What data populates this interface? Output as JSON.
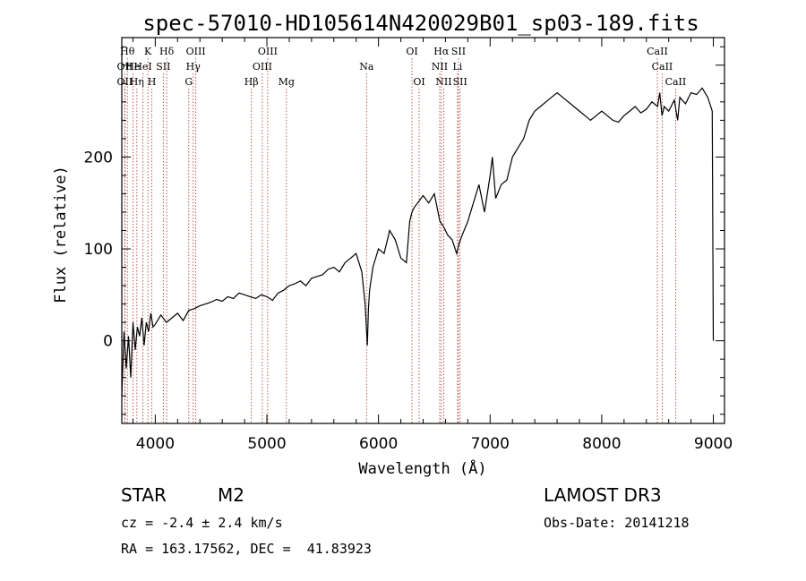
{
  "header": {
    "title": "spec-57010-HD105614N420029B01_sp03-189.fits"
  },
  "info": {
    "class_label": "STAR",
    "subclass_label": "M2",
    "cz": "cz = -2.4 ± 2.4 km/s",
    "radec": "RA = 163.17562, DEC =  41.83923",
    "survey": "LAMOST DR3",
    "obs_date": "Obs-Date: 20141218"
  },
  "colors": {
    "line_marker": "#b03030",
    "spectrum": "#000000"
  },
  "chart_data": {
    "type": "line",
    "title": "spec-57010-HD105614N420029B01_sp03-189.fits",
    "xlabel": "Wavelength (Å)",
    "ylabel": "Flux (relative)",
    "xlim": [
      3700,
      9100
    ],
    "ylim": [
      -90,
      330
    ],
    "xticks": [
      4000,
      5000,
      6000,
      7000,
      8000,
      9000
    ],
    "yticks": [
      0,
      100,
      200
    ],
    "spectrum": {
      "x": [
        3700,
        3720,
        3740,
        3760,
        3780,
        3800,
        3820,
        3840,
        3860,
        3880,
        3900,
        3920,
        3940,
        3960,
        3980,
        4000,
        4050,
        4100,
        4150,
        4200,
        4250,
        4300,
        4350,
        4400,
        4450,
        4500,
        4550,
        4600,
        4650,
        4700,
        4750,
        4800,
        4850,
        4900,
        4950,
        5000,
        5050,
        5100,
        5150,
        5200,
        5250,
        5300,
        5350,
        5400,
        5450,
        5500,
        5550,
        5600,
        5650,
        5700,
        5750,
        5800,
        5850,
        5880,
        5900,
        5910,
        5920,
        5950,
        6000,
        6050,
        6100,
        6150,
        6200,
        6250,
        6280,
        6300,
        6320,
        6350,
        6400,
        6450,
        6500,
        6550,
        6580,
        6620,
        6660,
        6700,
        6720,
        6750,
        6800,
        6850,
        6900,
        6950,
        7000,
        7020,
        7050,
        7100,
        7150,
        7200,
        7250,
        7300,
        7350,
        7400,
        7450,
        7500,
        7550,
        7600,
        7650,
        7700,
        7750,
        7800,
        7850,
        7900,
        7950,
        8000,
        8050,
        8100,
        8150,
        8200,
        8250,
        8300,
        8350,
        8400,
        8450,
        8500,
        8520,
        8540,
        8560,
        8600,
        8650,
        8680,
        8700,
        8750,
        8800,
        8850,
        8900,
        8950,
        8990,
        9000
      ],
      "y": [
        -60,
        10,
        -30,
        5,
        -40,
        20,
        -10,
        15,
        5,
        25,
        -5,
        20,
        10,
        30,
        15,
        18,
        28,
        20,
        25,
        30,
        22,
        33,
        35,
        38,
        40,
        42,
        45,
        43,
        48,
        46,
        52,
        50,
        48,
        46,
        50,
        48,
        44,
        52,
        55,
        60,
        62,
        65,
        60,
        68,
        70,
        72,
        78,
        80,
        75,
        85,
        90,
        95,
        75,
        40,
        -5,
        35,
        55,
        80,
        100,
        95,
        120,
        110,
        90,
        85,
        130,
        140,
        145,
        150,
        158,
        150,
        160,
        130,
        125,
        115,
        110,
        95,
        105,
        115,
        130,
        150,
        170,
        140,
        180,
        200,
        155,
        170,
        175,
        200,
        210,
        220,
        240,
        250,
        255,
        260,
        265,
        270,
        265,
        260,
        255,
        250,
        245,
        240,
        245,
        250,
        245,
        240,
        238,
        245,
        250,
        255,
        248,
        252,
        260,
        255,
        270,
        245,
        255,
        250,
        262,
        240,
        265,
        258,
        270,
        268,
        275,
        265,
        250,
        0
      ]
    },
    "lines": [
      {
        "x": 3750,
        "label": "Hθ",
        "row": 1
      },
      {
        "x": 3727,
        "label": "OII",
        "row": 2
      },
      {
        "x": 3727,
        "label": "OII",
        "row": 3
      },
      {
        "x": 3800,
        "label": "He",
        "row": 2
      },
      {
        "x": 3835,
        "label": "Hη",
        "row": 3
      },
      {
        "x": 3889,
        "label": "HeI",
        "row": 2
      },
      {
        "x": 3934,
        "label": "K",
        "row": 1
      },
      {
        "x": 3969,
        "label": "H",
        "row": 3
      },
      {
        "x": 4072,
        "label": "SII",
        "row": 2
      },
      {
        "x": 4102,
        "label": "Hδ",
        "row": 1
      },
      {
        "x": 4300,
        "label": "G",
        "row": 3
      },
      {
        "x": 4340,
        "label": "Hγ",
        "row": 2
      },
      {
        "x": 4363,
        "label": "OIII",
        "row": 1
      },
      {
        "x": 4861,
        "label": "Hβ",
        "row": 3
      },
      {
        "x": 4959,
        "label": "OIII",
        "row": 2
      },
      {
        "x": 5007,
        "label": "OIII",
        "row": 1
      },
      {
        "x": 5175,
        "label": "Mg",
        "row": 3
      },
      {
        "x": 5893,
        "label": "Na",
        "row": 2
      },
      {
        "x": 6300,
        "label": "OI",
        "row": 1
      },
      {
        "x": 6364,
        "label": "OI",
        "row": 3
      },
      {
        "x": 6548,
        "label": "NII",
        "row": 2
      },
      {
        "x": 6563,
        "label": "Hα",
        "row": 1
      },
      {
        "x": 6584,
        "label": "NII",
        "row": 3
      },
      {
        "x": 6708,
        "label": "Li",
        "row": 2
      },
      {
        "x": 6717,
        "label": "SII",
        "row": 1
      },
      {
        "x": 6731,
        "label": "SII",
        "row": 3
      },
      {
        "x": 8498,
        "label": "CaII",
        "row": 1
      },
      {
        "x": 8542,
        "label": "CaII",
        "row": 2
      },
      {
        "x": 8662,
        "label": "CaII",
        "row": 3
      }
    ]
  }
}
